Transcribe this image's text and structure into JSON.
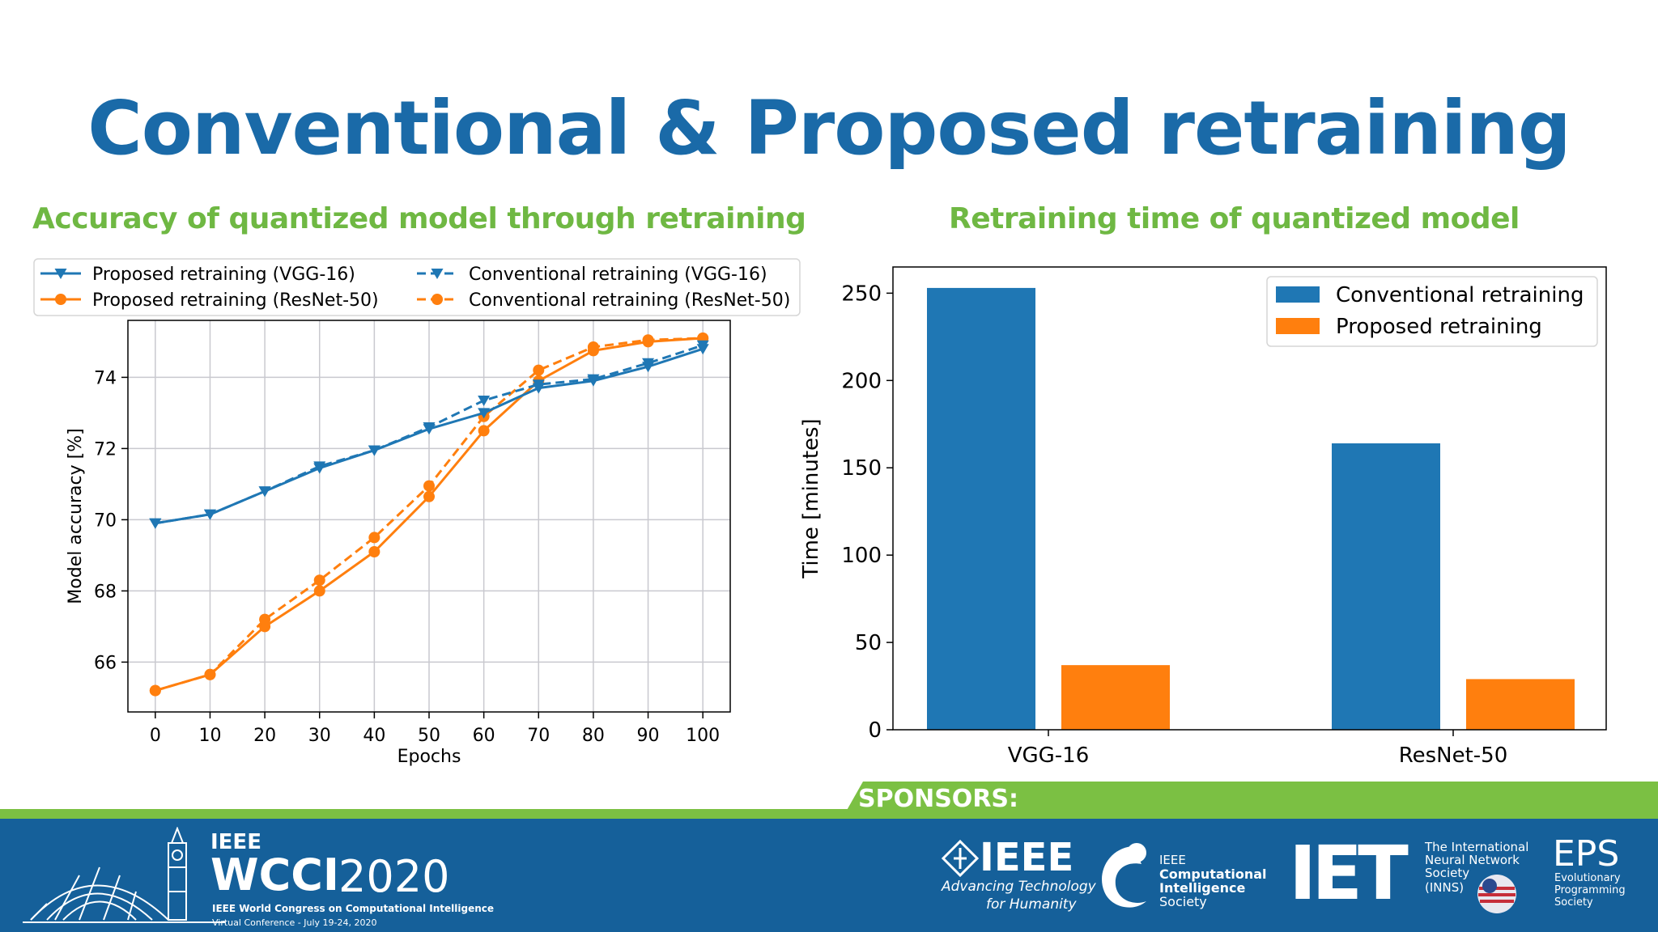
{
  "slide": {
    "title": "Conventional & Proposed retraining",
    "left_subtitle": "Accuracy of quantized model through retraining",
    "right_subtitle": "Retraining time of quantized model"
  },
  "colors": {
    "title": "#1a6aa8",
    "subtitle": "#6fb843",
    "blue": "#1f77b4",
    "orange": "#ff7f0e",
    "footer": "#15609a",
    "band": "#7bc043"
  },
  "chart_data": [
    {
      "type": "line",
      "title": "Accuracy of quantized model through retraining",
      "xlabel": "Epochs",
      "ylabel": "Model accuracy [%]",
      "xlim": [
        -5,
        105
      ],
      "ylim": [
        64.6,
        75.6
      ],
      "x": [
        0,
        10,
        20,
        30,
        40,
        50,
        60,
        70,
        80,
        90,
        100
      ],
      "xticks": [
        "0",
        "10",
        "20",
        "30",
        "40",
        "50",
        "60",
        "70",
        "80",
        "90",
        "100"
      ],
      "yticks": [
        "66",
        "68",
        "70",
        "72",
        "74"
      ],
      "grid": true,
      "legend_position": "top (above plot)",
      "series": [
        {
          "name": "Proposed retraining (VGG-16)",
          "color": "#1f77b4",
          "dash": "solid",
          "marker": "triangle-down",
          "values": [
            69.9,
            70.15,
            70.8,
            71.45,
            71.95,
            72.55,
            73.0,
            73.7,
            73.9,
            74.3,
            74.8
          ]
        },
        {
          "name": "Conventional retraining (VGG-16)",
          "color": "#1f77b4",
          "dash": "dashed",
          "marker": "triangle-down",
          "values": [
            69.9,
            70.15,
            70.8,
            71.5,
            71.95,
            72.6,
            73.35,
            73.8,
            73.95,
            74.4,
            74.9
          ]
        },
        {
          "name": "Proposed retraining (ResNet-50)",
          "color": "#ff7f0e",
          "dash": "solid",
          "marker": "circle",
          "values": [
            65.2,
            65.65,
            67.0,
            68.0,
            69.1,
            70.65,
            72.5,
            73.9,
            74.75,
            75.0,
            75.1
          ]
        },
        {
          "name": "Conventional retraining (ResNet-50)",
          "color": "#ff7f0e",
          "dash": "dashed",
          "marker": "circle",
          "values": [
            65.2,
            65.65,
            67.2,
            68.3,
            69.5,
            70.95,
            72.9,
            74.2,
            74.85,
            75.05,
            75.1
          ]
        }
      ],
      "legend_order": [
        0,
        1,
        2,
        3
      ]
    },
    {
      "type": "bar",
      "title": "Retraining time of quantized model",
      "xlabel": "",
      "ylabel": "Time [minutes]",
      "categories": [
        "VGG-16",
        "ResNet-50"
      ],
      "ylim": [
        0,
        265
      ],
      "yticks": [
        "0",
        "50",
        "100",
        "150",
        "200",
        "250"
      ],
      "grid": false,
      "legend_position": "top-right",
      "series": [
        {
          "name": "Conventional retraining",
          "color": "#1f77b4",
          "values": [
            253,
            164
          ]
        },
        {
          "name": "Proposed retraining",
          "color": "#ff7f0e",
          "values": [
            37,
            29
          ]
        }
      ]
    }
  ],
  "footer": {
    "sponsors_label": "SPONSORS:",
    "wcci": {
      "ieee": "IEEE",
      "name": "WCCI",
      "year": "2020",
      "line1": "IEEE World Congress on Computational Intelligence",
      "line2": "Virtual Conference - July 19-24, 2020"
    },
    "ieee": {
      "name": "IEEE",
      "tag1": "Advancing Technology",
      "tag2": "for Humanity"
    },
    "cis": {
      "l1": "IEEE",
      "l2": "Computational",
      "l3": "Intelligence",
      "l4": "Society"
    },
    "iet": "IET",
    "inns": {
      "l1": "The International",
      "l2": "Neural Network",
      "l3": "Society",
      "l4": "(INNS)"
    },
    "eps": {
      "name": "EPS",
      "l1": "Evolutionary",
      "l2": "Programming",
      "l3": "Society"
    }
  }
}
